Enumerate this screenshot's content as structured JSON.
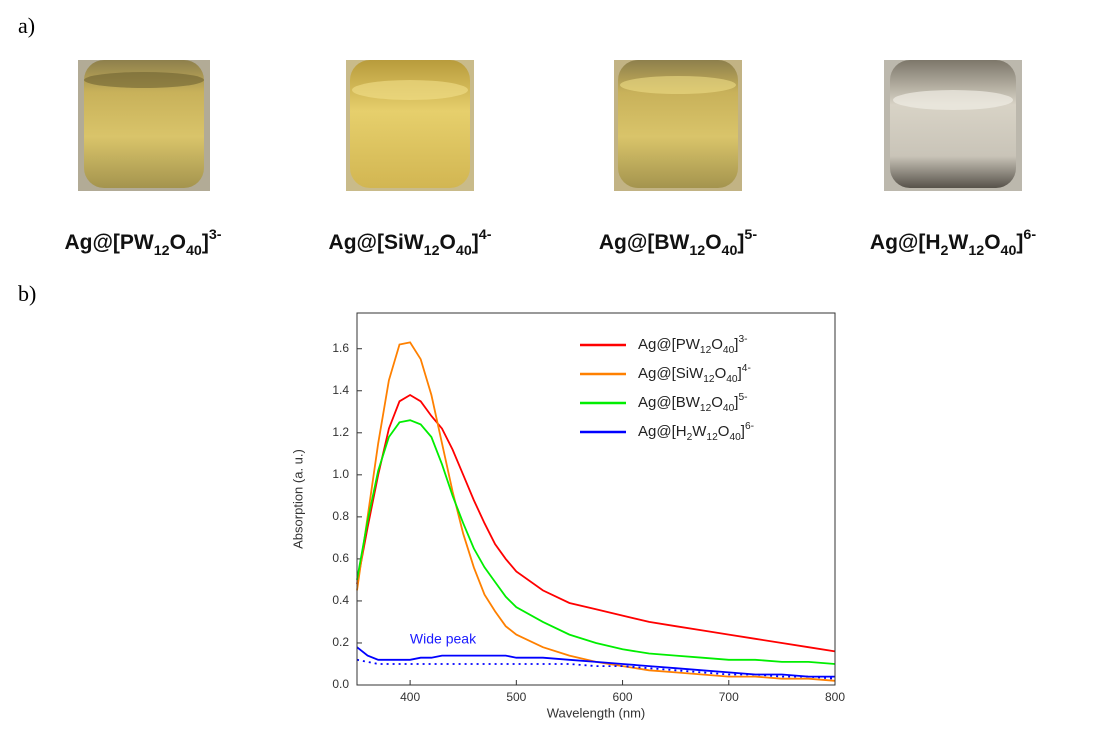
{
  "panel_a": {
    "label": "a)",
    "captions": [
      "Ag@[PW12O40]3-",
      "Ag@[SiW12O40]4-",
      "Ag@[BW12O40]5-",
      "Ag@[H2W12O40]6-"
    ]
  },
  "panel_b": {
    "label": "b)"
  },
  "chart_data": {
    "type": "line",
    "x_label": "Wavelength (nm)",
    "y_label": "Absorption (a. u.)",
    "x": [
      350,
      360,
      370,
      380,
      390,
      400,
      410,
      420,
      430,
      440,
      450,
      460,
      470,
      480,
      490,
      500,
      525,
      550,
      575,
      600,
      625,
      650,
      675,
      700,
      725,
      750,
      775,
      800
    ],
    "series": [
      {
        "name": "Ag@[PW12O40]3-",
        "color": "#ff0000",
        "values": [
          0.48,
          0.75,
          1.0,
          1.22,
          1.35,
          1.38,
          1.35,
          1.28,
          1.22,
          1.12,
          1.0,
          0.88,
          0.77,
          0.67,
          0.6,
          0.54,
          0.45,
          0.39,
          0.36,
          0.33,
          0.3,
          0.28,
          0.26,
          0.24,
          0.22,
          0.2,
          0.18,
          0.16
        ]
      },
      {
        "name": "Ag@[SiW12O40]4-",
        "color": "#ff8000",
        "values": [
          0.45,
          0.8,
          1.15,
          1.45,
          1.62,
          1.63,
          1.55,
          1.38,
          1.15,
          0.92,
          0.72,
          0.56,
          0.43,
          0.35,
          0.28,
          0.24,
          0.18,
          0.14,
          0.11,
          0.09,
          0.07,
          0.06,
          0.05,
          0.04,
          0.04,
          0.03,
          0.03,
          0.02
        ]
      },
      {
        "name": "Ag@[BW12O40]5-",
        "color": "#00ee00",
        "values": [
          0.5,
          0.78,
          1.02,
          1.18,
          1.25,
          1.26,
          1.24,
          1.18,
          1.05,
          0.9,
          0.77,
          0.65,
          0.56,
          0.49,
          0.42,
          0.37,
          0.3,
          0.24,
          0.2,
          0.17,
          0.15,
          0.14,
          0.13,
          0.12,
          0.12,
          0.11,
          0.11,
          0.1
        ]
      },
      {
        "name": "Ag@[H2W12O40]6-",
        "color": "#0000ff",
        "values": [
          0.18,
          0.14,
          0.12,
          0.12,
          0.12,
          0.12,
          0.13,
          0.13,
          0.14,
          0.14,
          0.14,
          0.14,
          0.14,
          0.14,
          0.14,
          0.13,
          0.13,
          0.12,
          0.11,
          0.1,
          0.09,
          0.08,
          0.07,
          0.06,
          0.05,
          0.05,
          0.04,
          0.04
        ]
      },
      {
        "color": "#0000ff",
        "style": "dotted",
        "values": [
          0.12,
          0.11,
          0.1,
          0.1,
          0.1,
          0.1,
          0.1,
          0.1,
          0.1,
          0.1,
          0.1,
          0.1,
          0.1,
          0.1,
          0.1,
          0.1,
          0.1,
          0.1,
          0.09,
          0.09,
          0.08,
          0.07,
          0.06,
          0.05,
          0.05,
          0.04,
          0.04,
          0.03
        ]
      }
    ],
    "annotations": [
      {
        "text": "Wide peak"
      }
    ],
    "xlim": [
      350,
      800
    ],
    "xticks": [
      400,
      500,
      600,
      700,
      800
    ],
    "ylim": [
      0,
      1.77
    ],
    "yticks": [
      {
        "value": 0,
        "label": "0.0"
      },
      0.2,
      0.4,
      0.6,
      0.8,
      {
        "value": 1,
        "label": "1.0"
      },
      1.2,
      1.4,
      1.6
    ],
    "legend": "upper-right"
  }
}
